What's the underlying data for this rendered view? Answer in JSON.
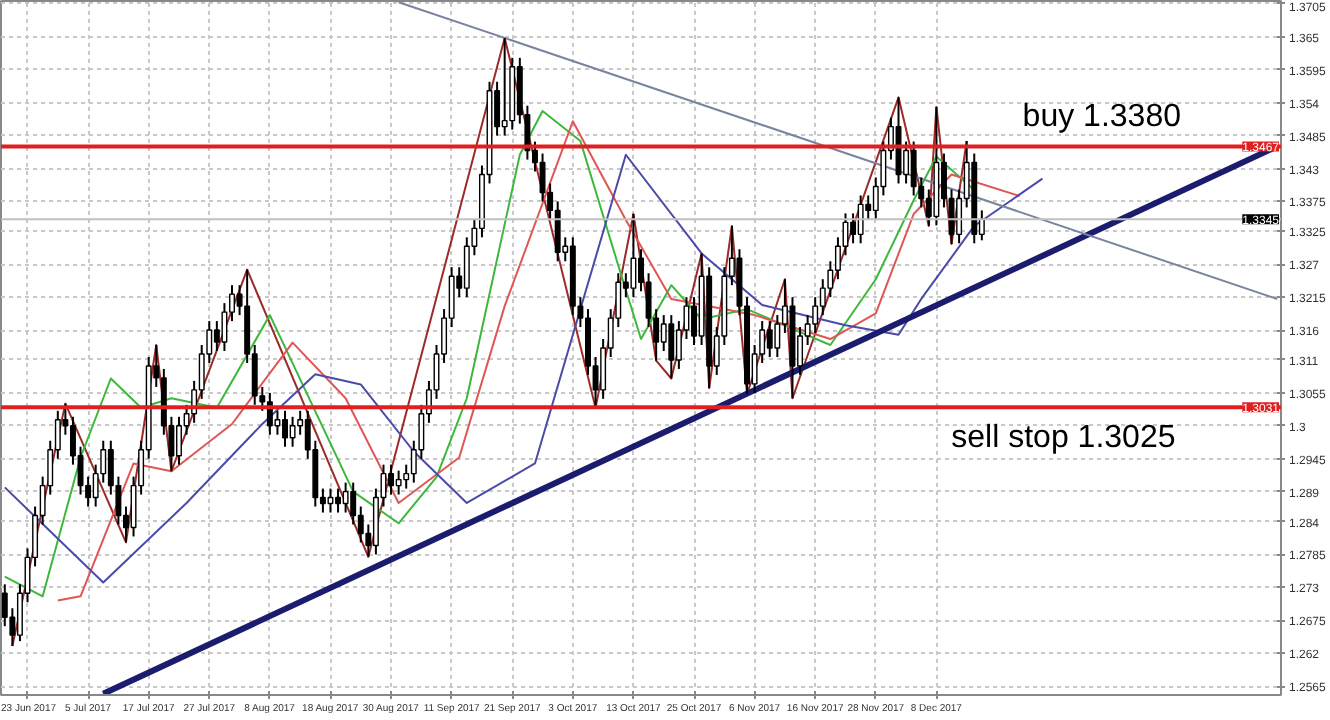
{
  "chart_data": {
    "type": "candlestick",
    "categories": [
      null,
      null,
      null,
      "23 Jun 2017",
      null,
      null,
      null,
      null,
      null,
      null,
      null,
      "5 Jul 2017",
      null,
      null,
      null,
      null,
      null,
      null,
      null,
      "17 Jul 2017",
      null,
      null,
      null,
      null,
      null,
      null,
      null,
      "27 Jul 2017",
      null,
      null,
      null,
      null,
      null,
      null,
      null,
      "8 Aug 2017",
      null,
      null,
      null,
      null,
      null,
      null,
      null,
      "18 Aug 2017",
      null,
      null,
      null,
      null,
      null,
      null,
      null,
      "30 Aug 2017",
      null,
      null,
      null,
      null,
      null,
      null,
      null,
      "11 Sep 2017",
      null,
      null,
      null,
      null,
      null,
      null,
      null,
      "21 Sep 2017",
      null,
      null,
      null,
      null,
      null,
      null,
      null,
      "3 Oct 2017",
      null,
      null,
      null,
      null,
      null,
      null,
      null,
      "13 Oct 2017",
      null,
      null,
      null,
      null,
      null,
      null,
      null,
      "25 Oct 2017",
      null,
      null,
      null,
      null,
      null,
      null,
      null,
      "6 Nov 2017",
      null,
      null,
      null,
      null,
      null,
      null,
      null,
      "16 Nov 2017",
      null,
      null,
      null,
      null,
      null,
      null,
      null,
      "28 Nov 2017",
      null,
      null,
      null,
      null,
      null,
      null,
      null,
      "8 Dec 2017",
      null,
      null,
      null,
      null,
      null,
      null,
      null,
      null,
      null,
      null,
      null,
      null,
      null,
      null,
      null,
      null,
      null,
      null,
      null,
      null,
      null,
      null,
      null,
      null,
      null,
      null,
      null,
      null,
      null,
      null,
      null,
      null,
      null,
      null,
      null,
      null,
      null,
      null,
      null,
      null,
      null,
      null,
      null,
      null,
      null
    ],
    "ohlc": [
      [
        1.272,
        1.2735,
        1.2665,
        1.268
      ],
      [
        1.268,
        1.2695,
        1.2632,
        1.265
      ],
      [
        1.265,
        1.2735,
        1.264,
        1.272
      ],
      [
        1.272,
        1.2795,
        1.2705,
        1.278
      ],
      [
        1.278,
        1.2865,
        1.2765,
        1.285
      ],
      [
        1.285,
        1.2915,
        1.2835,
        1.29
      ],
      [
        1.29,
        1.2975,
        1.2885,
        1.296
      ],
      [
        1.296,
        1.3025,
        1.2945,
        1.301
      ],
      [
        1.301,
        1.3037,
        1.2985,
        1.3
      ],
      [
        1.3,
        1.3015,
        1.2935,
        1.295
      ],
      [
        1.295,
        1.2965,
        1.2885,
        1.29
      ],
      [
        1.29,
        1.2915,
        1.2865,
        1.288
      ],
      [
        1.288,
        1.2935,
        1.2865,
        1.292
      ],
      [
        1.292,
        1.2975,
        1.2905,
        1.296
      ],
      [
        1.296,
        1.2975,
        1.2885,
        1.29
      ],
      [
        1.29,
        1.2915,
        1.2835,
        1.285
      ],
      [
        1.285,
        1.2865,
        1.2805,
        1.283
      ],
      [
        1.283,
        1.2915,
        1.2815,
        1.29
      ],
      [
        1.29,
        1.2975,
        1.2885,
        1.296
      ],
      [
        1.296,
        1.3115,
        1.2945,
        1.31
      ],
      [
        1.31,
        1.3135,
        1.3065,
        1.308
      ],
      [
        1.308,
        1.3095,
        1.2985,
        1.3
      ],
      [
        1.3,
        1.3015,
        1.2924,
        1.295
      ],
      [
        1.295,
        1.3015,
        1.2935,
        1.3
      ],
      [
        1.3,
        1.3035,
        1.2985,
        1.302
      ],
      [
        1.302,
        1.3075,
        1.3005,
        1.306
      ],
      [
        1.306,
        1.3135,
        1.3045,
        1.312
      ],
      [
        1.312,
        1.3175,
        1.3105,
        1.316
      ],
      [
        1.316,
        1.3175,
        1.3125,
        1.314
      ],
      [
        1.314,
        1.3205,
        1.3125,
        1.319
      ],
      [
        1.319,
        1.3235,
        1.3175,
        1.322
      ],
      [
        1.322,
        1.3235,
        1.3185,
        1.32
      ],
      [
        1.32,
        1.3261,
        1.3105,
        1.312
      ],
      [
        1.312,
        1.3135,
        1.3035,
        1.305
      ],
      [
        1.305,
        1.3065,
        1.3025,
        1.304
      ],
      [
        1.304,
        1.3055,
        1.2985,
        1.3
      ],
      [
        1.3,
        1.3025,
        1.2985,
        1.301
      ],
      [
        1.301,
        1.3025,
        1.2965,
        1.298
      ],
      [
        1.298,
        1.3015,
        1.2965,
        1.3
      ],
      [
        1.3,
        1.3025,
        1.2985,
        1.301
      ],
      [
        1.301,
        1.3025,
        1.2945,
        1.296
      ],
      [
        1.296,
        1.2975,
        1.2865,
        1.288
      ],
      [
        1.288,
        1.2895,
        1.2855,
        1.287
      ],
      [
        1.287,
        1.2895,
        1.2855,
        1.288
      ],
      [
        1.288,
        1.2895,
        1.2855,
        1.287
      ],
      [
        1.287,
        1.2905,
        1.2855,
        1.289
      ],
      [
        1.289,
        1.2905,
        1.2835,
        1.285
      ],
      [
        1.285,
        1.2865,
        1.2805,
        1.282
      ],
      [
        1.282,
        1.2835,
        1.2781,
        1.28
      ],
      [
        1.28,
        1.2895,
        1.2785,
        1.288
      ],
      [
        1.288,
        1.2935,
        1.2865,
        1.292
      ],
      [
        1.292,
        1.2935,
        1.2885,
        1.29
      ],
      [
        1.29,
        1.2925,
        1.2885,
        1.291
      ],
      [
        1.291,
        1.2935,
        1.2895,
        1.292
      ],
      [
        1.292,
        1.2975,
        1.2905,
        1.296
      ],
      [
        1.296,
        1.3035,
        1.2945,
        1.302
      ],
      [
        1.302,
        1.3075,
        1.3005,
        1.306
      ],
      [
        1.306,
        1.3135,
        1.3045,
        1.312
      ],
      [
        1.312,
        1.3195,
        1.3105,
        1.318
      ],
      [
        1.318,
        1.3265,
        1.3165,
        1.325
      ],
      [
        1.325,
        1.3265,
        1.3215,
        1.323
      ],
      [
        1.323,
        1.3315,
        1.3215,
        1.33
      ],
      [
        1.33,
        1.3345,
        1.3285,
        1.333
      ],
      [
        1.333,
        1.3435,
        1.3315,
        1.342
      ],
      [
        1.342,
        1.3575,
        1.3405,
        1.356
      ],
      [
        1.356,
        1.3575,
        1.3485,
        1.35
      ],
      [
        1.35,
        1.3648,
        1.3485,
        1.351
      ],
      [
        1.351,
        1.3615,
        1.3495,
        1.36
      ],
      [
        1.36,
        1.3615,
        1.3505,
        1.352
      ],
      [
        1.352,
        1.3535,
        1.3445,
        1.346
      ],
      [
        1.346,
        1.3475,
        1.3425,
        1.344
      ],
      [
        1.344,
        1.3455,
        1.3375,
        1.339
      ],
      [
        1.339,
        1.3405,
        1.3345,
        1.336
      ],
      [
        1.336,
        1.3375,
        1.3275,
        1.329
      ],
      [
        1.329,
        1.3315,
        1.3275,
        1.33
      ],
      [
        1.33,
        1.3315,
        1.3185,
        1.32
      ],
      [
        1.32,
        1.3215,
        1.3165,
        1.318
      ],
      [
        1.318,
        1.3195,
        1.3085,
        1.31
      ],
      [
        1.31,
        1.3115,
        1.303,
        1.306
      ],
      [
        1.306,
        1.3145,
        1.3045,
        1.313
      ],
      [
        1.313,
        1.3195,
        1.3115,
        1.318
      ],
      [
        1.318,
        1.3255,
        1.3165,
        1.324
      ],
      [
        1.324,
        1.3255,
        1.3215,
        1.323
      ],
      [
        1.323,
        1.3354,
        1.3215,
        1.328
      ],
      [
        1.328,
        1.3295,
        1.3225,
        1.324
      ],
      [
        1.324,
        1.3255,
        1.3165,
        1.318
      ],
      [
        1.318,
        1.3195,
        1.3109,
        1.314
      ],
      [
        1.314,
        1.3185,
        1.3125,
        1.317
      ],
      [
        1.317,
        1.3185,
        1.3079,
        1.311
      ],
      [
        1.311,
        1.3175,
        1.3095,
        1.316
      ],
      [
        1.316,
        1.3215,
        1.3145,
        1.32
      ],
      [
        1.32,
        1.3215,
        1.3135,
        1.315
      ],
      [
        1.315,
        1.3288,
        1.3135,
        1.325
      ],
      [
        1.325,
        1.3265,
        1.3063,
        1.31
      ],
      [
        1.31,
        1.3165,
        1.3085,
        1.315
      ],
      [
        1.315,
        1.3265,
        1.3135,
        1.325
      ],
      [
        1.325,
        1.3334,
        1.3235,
        1.328
      ],
      [
        1.328,
        1.3295,
        1.3185,
        1.32
      ],
      [
        1.32,
        1.3215,
        1.3053,
        1.307
      ],
      [
        1.307,
        1.3135,
        1.3055,
        1.312
      ],
      [
        1.312,
        1.3175,
        1.3105,
        1.316
      ],
      [
        1.316,
        1.3175,
        1.3115,
        1.313
      ],
      [
        1.313,
        1.3185,
        1.3115,
        1.317
      ],
      [
        1.317,
        1.3245,
        1.3155,
        1.32
      ],
      [
        1.32,
        1.3215,
        1.3046,
        1.31
      ],
      [
        1.31,
        1.3165,
        1.3085,
        1.315
      ],
      [
        1.315,
        1.3185,
        1.3135,
        1.317
      ],
      [
        1.317,
        1.3215,
        1.3155,
        1.32
      ],
      [
        1.32,
        1.3245,
        1.3185,
        1.323
      ],
      [
        1.323,
        1.3275,
        1.3215,
        1.326
      ],
      [
        1.326,
        1.3315,
        1.3245,
        1.33
      ],
      [
        1.33,
        1.3355,
        1.3285,
        1.334
      ],
      [
        1.334,
        1.3355,
        1.3305,
        1.332
      ],
      [
        1.332,
        1.3385,
        1.3305,
        1.337
      ],
      [
        1.337,
        1.3385,
        1.3345,
        1.336
      ],
      [
        1.336,
        1.3415,
        1.3345,
        1.34
      ],
      [
        1.34,
        1.3475,
        1.3385,
        1.346
      ],
      [
        1.346,
        1.3515,
        1.3445,
        1.35
      ],
      [
        1.35,
        1.3549,
        1.3405,
        1.342
      ],
      [
        1.342,
        1.3475,
        1.3405,
        1.346
      ],
      [
        1.346,
        1.3475,
        1.3385,
        1.34
      ],
      [
        1.34,
        1.3415,
        1.3365,
        1.338
      ],
      [
        1.338,
        1.3395,
        1.3334,
        1.335
      ],
      [
        1.335,
        1.3533,
        1.3335,
        1.344
      ],
      [
        1.344,
        1.3455,
        1.3365,
        1.338
      ],
      [
        1.338,
        1.3395,
        1.3304,
        1.332
      ],
      [
        1.332,
        1.3395,
        1.3305,
        1.338
      ],
      [
        1.338,
        1.3476,
        1.3365,
        1.344
      ],
      [
        1.344,
        1.3455,
        1.3305,
        1.332
      ],
      [
        1.332,
        1.336,
        1.331,
        1.3345
      ],
      null,
      null,
      null,
      null,
      null,
      null,
      null,
      null,
      null,
      null,
      null,
      null,
      null,
      null,
      null,
      null,
      null,
      null,
      null,
      null,
      null,
      null,
      null,
      null,
      null,
      null,
      null,
      null,
      null,
      null,
      null,
      null,
      null,
      null,
      null,
      null,
      null,
      null,
      null
    ],
    "series": [
      {
        "type": "line",
        "color": "#9c2a2a",
        "values": [
          null,
          1.2632,
          null,
          null,
          null,
          null,
          null,
          null,
          1.3037,
          null,
          null,
          null,
          null,
          null,
          null,
          null,
          1.2805,
          null,
          null,
          null,
          1.3135,
          null,
          1.2924,
          null,
          null,
          null,
          null,
          null,
          null,
          null,
          null,
          null,
          1.3261,
          null,
          null,
          null,
          null,
          null,
          null,
          null,
          null,
          null,
          null,
          null,
          null,
          null,
          null,
          null,
          1.2781,
          null,
          null,
          null,
          null,
          null,
          null,
          null,
          null,
          null,
          null,
          null,
          null,
          null,
          null,
          null,
          null,
          null,
          1.3648,
          null,
          null,
          null,
          null,
          null,
          null,
          null,
          null,
          null,
          null,
          null,
          1.303,
          null,
          null,
          null,
          null,
          1.3354,
          null,
          null,
          1.3109,
          null,
          1.3079,
          null,
          null,
          null,
          1.3288,
          1.3063,
          null,
          null,
          1.3334,
          null,
          1.3053,
          null,
          null,
          null,
          null,
          1.3245,
          1.3046,
          null,
          null,
          null,
          null,
          null,
          null,
          null,
          null,
          null,
          null,
          null,
          null,
          null,
          1.3549,
          null,
          null,
          null,
          1.3334,
          1.3533,
          null,
          1.3304,
          null,
          1.3476,
          null,
          null,
          null,
          null,
          null,
          null,
          null,
          null,
          null,
          null,
          null,
          null,
          null,
          null,
          null,
          null,
          null,
          null,
          null,
          null,
          null,
          null,
          null,
          null,
          null,
          null,
          null,
          null,
          null,
          null,
          null,
          null,
          null,
          null,
          null,
          null,
          null,
          null,
          null,
          null,
          null
        ]
      },
      {
        "type": "line",
        "color": "#3cb83c",
        "values": [
          1.2748,
          null,
          null,
          null,
          null,
          1.2715,
          null,
          null,
          null,
          null,
          1.2947,
          null,
          null,
          null,
          1.3079,
          null,
          null,
          null,
          1.303,
          null,
          null,
          null,
          1.3046,
          null,
          null,
          null,
          null,
          null,
          1.303,
          null,
          null,
          null,
          null,
          null,
          null,
          1.3185,
          null,
          null,
          null,
          null,
          null,
          null,
          null,
          null,
          null,
          null,
          1.289,
          null,
          null,
          null,
          null,
          null,
          1.2837,
          null,
          null,
          null,
          null,
          1.2914,
          null,
          null,
          null,
          1.3046,
          null,
          null,
          null,
          null,
          null,
          null,
          1.3453,
          null,
          null,
          1.3526,
          null,
          null,
          null,
          null,
          1.3476,
          null,
          null,
          null,
          null,
          1.3268,
          null,
          null,
          1.3145,
          null,
          null,
          null,
          1.3235,
          null,
          null,
          null,
          1.3178,
          null,
          null,
          null,
          null,
          null,
          1.3195,
          null,
          null,
          null,
          null,
          null,
          1.3162,
          null,
          null,
          null,
          null,
          1.3135,
          null,
          null,
          null,
          null,
          null,
          1.3245,
          null,
          null,
          null,
          null,
          1.3377,
          null,
          null,
          1.345,
          null,
          null,
          null,
          null,
          1.3394,
          null,
          null,
          null,
          null,
          null,
          null,
          null,
          null,
          null,
          null,
          null,
          null,
          null,
          null,
          null,
          null,
          null,
          null,
          null,
          null,
          null,
          null,
          null,
          null,
          null,
          null,
          null,
          null,
          null,
          null,
          null,
          null,
          null,
          null,
          null,
          null,
          null,
          null,
          null,
          null
        ]
      },
      {
        "type": "line",
        "color": "#e05555",
        "values": [
          null,
          null,
          null,
          null,
          null,
          null,
          null,
          1.2708,
          null,
          null,
          1.2715,
          null,
          null,
          null,
          null,
          null,
          null,
          1.2937,
          null,
          null,
          null,
          null,
          1.2924,
          null,
          null,
          null,
          null,
          null,
          null,
          null,
          1.3003,
          null,
          null,
          null,
          null,
          null,
          null,
          null,
          1.3139,
          null,
          null,
          null,
          null,
          null,
          null,
          1.3046,
          null,
          null,
          null,
          null,
          null,
          null,
          1.2871,
          null,
          null,
          null,
          null,
          null,
          null,
          null,
          1.2947,
          null,
          null,
          null,
          null,
          null,
          1.32,
          null,
          null,
          null,
          null,
          null,
          null,
          null,
          null,
          1.3509,
          null,
          null,
          null,
          null,
          null,
          null,
          1.3344,
          null,
          null,
          null,
          null,
          null,
          1.3212,
          null,
          null,
          null,
          null,
          null,
          null,
          null,
          null,
          null,
          null,
          1.3185,
          null,
          null,
          null,
          null,
          null,
          null,
          null,
          null,
          null,
          1.3145,
          null,
          null,
          null,
          null,
          null,
          1.3188,
          null,
          null,
          null,
          null,
          1.3354,
          null,
          null,
          null,
          null,
          1.342,
          null,
          null,
          null,
          null,
          null,
          null,
          null,
          null,
          1.3384,
          null,
          null,
          null,
          null,
          null,
          null,
          null,
          null,
          null,
          null,
          null,
          null,
          null,
          null,
          null,
          null,
          null,
          null,
          null,
          null,
          null,
          null,
          null,
          null,
          null,
          null,
          null,
          null,
          null,
          null,
          null,
          null,
          null,
          null
        ]
      },
      {
        "type": "line",
        "color": "#4a4aa8",
        "values": [
          1.2897,
          null,
          null,
          null,
          null,
          null,
          null,
          null,
          null,
          null,
          null,
          null,
          null,
          1.2738,
          null,
          null,
          null,
          null,
          null,
          null,
          null,
          null,
          null,
          null,
          1.2871,
          null,
          null,
          null,
          null,
          null,
          null,
          null,
          null,
          null,
          1.3003,
          null,
          null,
          null,
          null,
          null,
          null,
          1.3086,
          null,
          null,
          null,
          null,
          null,
          1.3069,
          null,
          null,
          null,
          null,
          null,
          null,
          1.2957,
          null,
          null,
          null,
          null,
          null,
          null,
          1.2871,
          null,
          null,
          null,
          null,
          null,
          null,
          null,
          null,
          1.2937,
          null,
          null,
          null,
          null,
          null,
          null,
          null,
          null,
          null,
          null,
          null,
          1.3453,
          null,
          null,
          null,
          null,
          null,
          null,
          null,
          null,
          null,
          1.3288,
          null,
          null,
          null,
          null,
          null,
          null,
          null,
          1.3202,
          null,
          null,
          null,
          null,
          null,
          null,
          null,
          null,
          null,
          null,
          1.3168,
          null,
          null,
          null,
          null,
          null,
          null,
          1.3152,
          null,
          null,
          1.3212,
          null,
          null,
          null,
          null,
          null,
          null,
          1.3334,
          null,
          null,
          null,
          null,
          null,
          null,
          null,
          null,
          1.3413,
          null,
          null,
          null,
          null,
          null,
          null,
          null,
          null,
          null,
          null,
          null,
          null,
          null,
          null,
          null,
          null,
          null,
          null,
          null,
          null,
          null,
          null,
          null,
          null,
          null,
          null,
          null,
          null,
          null,
          null,
          null
        ]
      },
      {
        "type": "line",
        "color": "#1c1c6e",
        "values": [
          null,
          null,
          null,
          null,
          null,
          null,
          null,
          null,
          null,
          null,
          null,
          null,
          null,
          1.2552,
          null,
          null,
          null,
          null,
          null,
          null,
          null,
          null,
          null,
          null,
          null,
          null,
          null,
          null,
          null,
          null,
          null,
          null,
          null,
          null,
          null,
          null,
          null,
          null,
          null,
          null,
          null,
          null,
          null,
          null,
          null,
          null,
          null,
          null,
          null,
          null,
          null,
          null,
          null,
          null,
          null,
          null,
          null,
          null,
          null,
          null,
          null,
          null,
          null,
          null,
          null,
          null,
          null,
          null,
          null,
          null,
          null,
          null,
          null,
          null,
          null,
          null,
          null,
          null,
          null,
          null,
          null,
          null,
          null,
          null,
          null,
          null,
          null,
          null,
          null,
          null,
          null,
          null,
          null,
          null,
          null,
          null,
          null,
          null,
          null,
          null,
          null,
          null,
          null,
          null,
          null,
          null,
          null,
          null,
          null,
          null,
          null,
          null,
          null,
          null,
          null,
          null,
          null,
          null,
          null,
          null,
          null,
          null,
          null,
          null,
          null,
          null,
          null,
          null,
          null,
          null,
          null,
          null,
          null,
          null,
          null,
          null,
          null,
          null,
          null,
          null,
          null,
          null,
          null,
          null,
          null,
          null,
          null,
          null,
          null,
          null,
          null,
          null,
          null,
          null,
          null,
          null,
          null,
          null,
          null,
          null,
          null,
          null,
          null,
          null,
          null,
          null,
          null,
          null,
          1.3467
        ]
      },
      {
        "type": "line",
        "color": "#7a84a0",
        "values": [
          null,
          null,
          null,
          null,
          null,
          null,
          null,
          null,
          null,
          null,
          null,
          null,
          null,
          null,
          null,
          null,
          null,
          null,
          null,
          null,
          null,
          null,
          null,
          null,
          null,
          null,
          null,
          null,
          null,
          null,
          null,
          null,
          null,
          null,
          null,
          null,
          null,
          null,
          null,
          null,
          null,
          null,
          null,
          null,
          null,
          null,
          null,
          null,
          null,
          null,
          null,
          null,
          1.3708,
          null,
          null,
          null,
          null,
          null,
          null,
          null,
          null,
          null,
          null,
          null,
          null,
          null,
          null,
          null,
          null,
          null,
          null,
          null,
          null,
          null,
          null,
          null,
          null,
          null,
          null,
          null,
          null,
          null,
          null,
          null,
          null,
          null,
          null,
          null,
          null,
          null,
          null,
          null,
          null,
          null,
          null,
          null,
          null,
          null,
          null,
          null,
          null,
          null,
          null,
          null,
          null,
          null,
          null,
          null,
          null,
          null,
          null,
          null,
          null,
          null,
          null,
          null,
          null,
          null,
          null,
          null,
          null,
          null,
          null,
          null,
          null,
          null,
          null,
          null,
          null,
          null,
          null,
          null,
          null,
          null,
          null,
          null,
          null,
          null,
          null,
          null,
          null,
          null,
          null,
          null,
          null,
          null,
          null,
          null,
          null,
          null,
          null,
          null,
          null,
          null,
          null,
          null,
          null,
          null,
          null,
          null,
          null,
          null,
          null,
          null,
          null,
          null,
          null,
          null,
          1.3212
        ]
      }
    ],
    "ref_lines": [
      {
        "axis": "y",
        "value": 1.3467,
        "label": "buy 1.3380",
        "color": "#e02020"
      },
      {
        "axis": "y",
        "value": 1.3031,
        "label": "sell stop 1.3025",
        "color": "#e02020"
      },
      {
        "axis": "y",
        "value": 1.3345,
        "label": "1.3345",
        "color": "#c0c0c0"
      }
    ],
    "annotations": [
      "1.3467",
      "1.3031"
    ],
    "ylim": [
      1.255,
      1.371
    ],
    "yticks": [
      1.3705,
      1.365,
      1.3595,
      1.354,
      1.3485,
      1.343,
      1.3375,
      1.3325,
      1.327,
      1.3215,
      1.316,
      1.311,
      1.3055,
      1.3,
      1.2945,
      1.289,
      1.284,
      1.2785,
      1.273,
      1.2675,
      1.262,
      1.2565
    ],
    "grid": true
  }
}
